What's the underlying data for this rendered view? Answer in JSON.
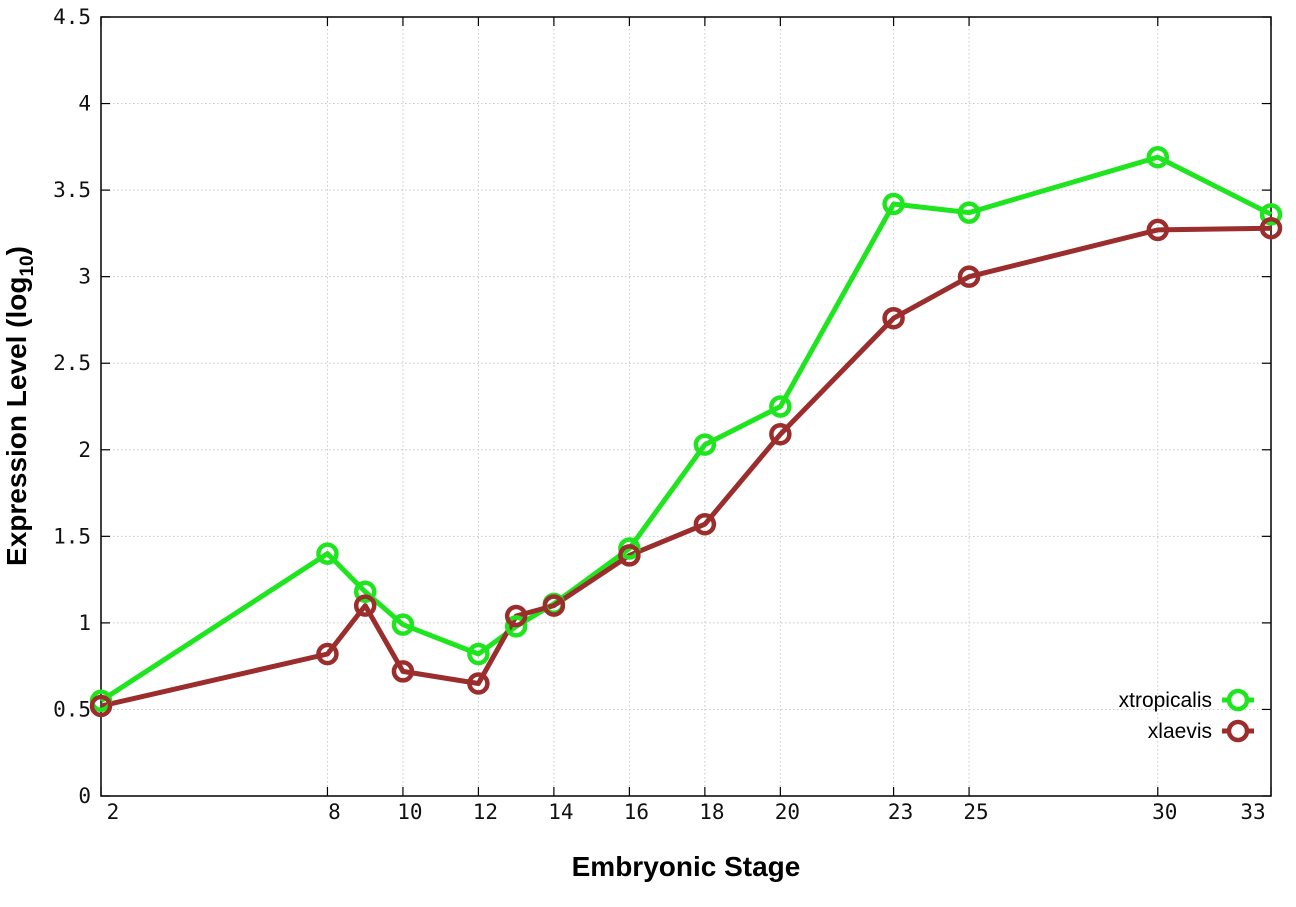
{
  "chart_data": {
    "type": "line",
    "title": "",
    "xlabel": "Embryonic Stage",
    "ylabel": "Expression Level (log",
    "ylabel_sub": "10",
    "ylabel_close": ")",
    "x_ticks": [
      2,
      8,
      10,
      12,
      14,
      16,
      18,
      20,
      23,
      25,
      30,
      33
    ],
    "y_ticks": [
      "0",
      "0.5",
      "1",
      "1.5",
      "2",
      "2.5",
      "3",
      "3.5",
      "4",
      "4.5"
    ],
    "xlim": [
      2,
      33
    ],
    "ylim": [
      0,
      4.5
    ],
    "grid": true,
    "legend_position": "bottom-right",
    "series": [
      {
        "name": "xtropicalis",
        "color": "#1ee51e",
        "points": [
          [
            2,
            0.55
          ],
          [
            8,
            1.4
          ],
          [
            9,
            1.18
          ],
          [
            10,
            0.99
          ],
          [
            12,
            0.82
          ],
          [
            13,
            0.98
          ],
          [
            14,
            1.11
          ],
          [
            16,
            1.43
          ],
          [
            18,
            2.03
          ],
          [
            20,
            2.25
          ],
          [
            23,
            3.42
          ],
          [
            25,
            3.37
          ],
          [
            30,
            3.69
          ],
          [
            33,
            3.36
          ]
        ]
      },
      {
        "name": "xlaevis",
        "color": "#9b2d2d",
        "points": [
          [
            2,
            0.52
          ],
          [
            8,
            0.82
          ],
          [
            9,
            1.1
          ],
          [
            10,
            0.72
          ],
          [
            12,
            0.65
          ],
          [
            13,
            1.04
          ],
          [
            14,
            1.1
          ],
          [
            16,
            1.39
          ],
          [
            18,
            1.57
          ],
          [
            20,
            2.09
          ],
          [
            23,
            2.76
          ],
          [
            25,
            3.0
          ],
          [
            30,
            3.27
          ],
          [
            33,
            3.28
          ]
        ]
      }
    ]
  }
}
